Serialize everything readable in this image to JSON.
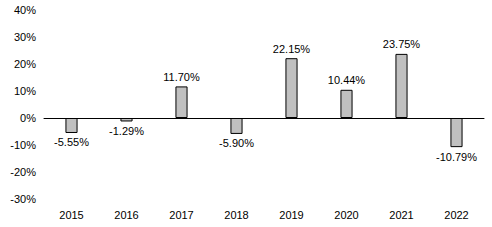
{
  "chart_data": {
    "type": "bar",
    "categories": [
      "2015",
      "2016",
      "2017",
      "2018",
      "2019",
      "2020",
      "2021",
      "2022"
    ],
    "values": [
      -5.55,
      -1.29,
      11.7,
      -5.9,
      22.15,
      10.44,
      23.75,
      -10.79
    ],
    "value_labels": [
      "-5.55%",
      "-1.29%",
      "11.70%",
      "-5.90%",
      "22.15%",
      "10.44%",
      "23.75%",
      "-10.79%"
    ],
    "color": "#c0c0c0",
    "ylim": [
      -30,
      40
    ],
    "yticks": [
      {
        "value": -30,
        "label": "-30%"
      },
      {
        "value": -20,
        "label": "-20%"
      },
      {
        "value": -10,
        "label": "-10%"
      },
      {
        "value": 0,
        "label": "0%"
      },
      {
        "value": 10,
        "label": "10%"
      },
      {
        "value": 20,
        "label": "20%"
      },
      {
        "value": 30,
        "label": "30%"
      },
      {
        "value": 40,
        "label": "40%"
      }
    ],
    "grid": false,
    "data_labels": true
  }
}
